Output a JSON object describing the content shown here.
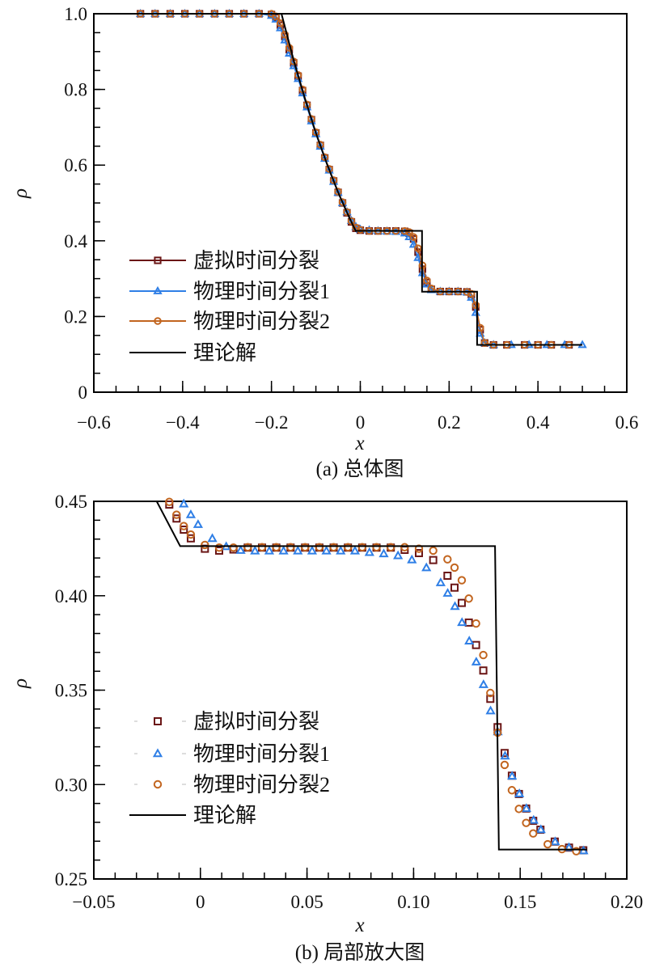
{
  "chart_data": [
    {
      "type": "line",
      "caption": "(a) 总体图",
      "xlabel": "x",
      "ylabel": "ρ",
      "xlim": [
        -0.6,
        0.6
      ],
      "ylim": [
        0,
        1.0
      ],
      "xticks": [
        -0.6,
        -0.4,
        -0.2,
        0,
        0.2,
        0.4,
        0.6
      ],
      "xtick_labels": [
        "−0.6",
        "−0.4",
        "−0.2",
        "0",
        "0.2",
        "0.4",
        "0.6"
      ],
      "yticks": [
        0,
        0.2,
        0.4,
        0.6,
        0.8,
        1.0
      ],
      "ytick_labels": [
        "0",
        "0.2",
        "0.4",
        "0.6",
        "0.8",
        "1.0"
      ],
      "grid": false,
      "legend_position": "bottom-left",
      "series": [
        {
          "name": "虚拟时间分裂",
          "marker": "square",
          "color": "#6b1616",
          "line": true,
          "x": [
            -0.495,
            -0.462,
            -0.428,
            -0.395,
            -0.362,
            -0.328,
            -0.295,
            -0.262,
            -0.228,
            -0.2,
            -0.19,
            -0.18,
            -0.17,
            -0.16,
            -0.15,
            -0.14,
            -0.13,
            -0.12,
            -0.11,
            -0.1,
            -0.09,
            -0.08,
            -0.07,
            -0.06,
            -0.05,
            -0.04,
            -0.03,
            -0.02,
            -0.01,
            0,
            0.02,
            0.04,
            0.06,
            0.08,
            0.1,
            0.11,
            0.12,
            0.13,
            0.14,
            0.15,
            0.16,
            0.18,
            0.2,
            0.22,
            0.24,
            0.25,
            0.26,
            0.27,
            0.28,
            0.3,
            0.33,
            0.37,
            0.4,
            0.43,
            0.47
          ],
          "y": [
            1,
            1,
            1,
            1,
            1,
            1,
            1,
            1,
            1,
            0.998,
            0.99,
            0.97,
            0.94,
            0.905,
            0.87,
            0.835,
            0.797,
            0.758,
            0.72,
            0.685,
            0.652,
            0.619,
            0.588,
            0.558,
            0.528,
            0.5,
            0.474,
            0.45,
            0.433,
            0.428,
            0.426,
            0.426,
            0.426,
            0.426,
            0.425,
            0.42,
            0.405,
            0.37,
            0.325,
            0.29,
            0.272,
            0.266,
            0.266,
            0.266,
            0.265,
            0.258,
            0.225,
            0.165,
            0.13,
            0.125,
            0.125,
            0.125,
            0.125,
            0.125,
            0.125
          ]
        },
        {
          "name": "物理时间分裂1",
          "marker": "triangle",
          "color": "#2f7fe6",
          "line": true,
          "x": [
            -0.495,
            -0.462,
            -0.428,
            -0.395,
            -0.362,
            -0.328,
            -0.295,
            -0.262,
            -0.228,
            -0.2,
            -0.19,
            -0.18,
            -0.17,
            -0.16,
            -0.15,
            -0.14,
            -0.13,
            -0.12,
            -0.11,
            -0.1,
            -0.09,
            -0.08,
            -0.07,
            -0.06,
            -0.05,
            -0.04,
            -0.03,
            -0.02,
            -0.01,
            0,
            0.02,
            0.04,
            0.06,
            0.08,
            0.1,
            0.11,
            0.12,
            0.13,
            0.14,
            0.15,
            0.16,
            0.18,
            0.2,
            0.22,
            0.24,
            0.25,
            0.26,
            0.27,
            0.28,
            0.3,
            0.34,
            0.38,
            0.42,
            0.46,
            0.5
          ],
          "y": [
            1,
            1,
            1,
            1,
            1,
            1,
            1,
            1,
            1,
            0.995,
            0.985,
            0.962,
            0.93,
            0.895,
            0.862,
            0.828,
            0.79,
            0.753,
            0.716,
            0.682,
            0.649,
            0.617,
            0.586,
            0.556,
            0.527,
            0.5,
            0.476,
            0.453,
            0.437,
            0.43,
            0.428,
            0.426,
            0.425,
            0.424,
            0.42,
            0.41,
            0.39,
            0.355,
            0.315,
            0.285,
            0.27,
            0.266,
            0.266,
            0.266,
            0.264,
            0.25,
            0.21,
            0.155,
            0.13,
            0.125,
            0.125,
            0.125,
            0.125,
            0.125,
            0.125
          ]
        },
        {
          "name": "物理时间分裂2",
          "marker": "circle",
          "color": "#c2651f",
          "line": true,
          "x": [
            -0.495,
            -0.462,
            -0.428,
            -0.395,
            -0.362,
            -0.328,
            -0.295,
            -0.262,
            -0.228,
            -0.2,
            -0.19,
            -0.18,
            -0.17,
            -0.16,
            -0.15,
            -0.14,
            -0.13,
            -0.12,
            -0.11,
            -0.1,
            -0.09,
            -0.08,
            -0.07,
            -0.06,
            -0.05,
            -0.04,
            -0.03,
            -0.02,
            -0.01,
            0,
            0.02,
            0.04,
            0.06,
            0.08,
            0.1,
            0.11,
            0.12,
            0.13,
            0.14,
            0.15,
            0.16,
            0.18,
            0.2,
            0.22,
            0.24,
            0.25,
            0.26,
            0.27,
            0.28,
            0.3,
            0.33,
            0.37,
            0.4,
            0.43,
            0.47
          ],
          "y": [
            1,
            1,
            1,
            1,
            1,
            1,
            1,
            1,
            1,
            1,
            0.993,
            0.975,
            0.945,
            0.91,
            0.874,
            0.838,
            0.8,
            0.76,
            0.722,
            0.687,
            0.654,
            0.621,
            0.59,
            0.56,
            0.53,
            0.502,
            0.476,
            0.452,
            0.435,
            0.429,
            0.426,
            0.426,
            0.426,
            0.426,
            0.426,
            0.423,
            0.41,
            0.38,
            0.335,
            0.295,
            0.274,
            0.266,
            0.266,
            0.266,
            0.265,
            0.26,
            0.23,
            0.17,
            0.13,
            0.125,
            0.125,
            0.125,
            0.125,
            0.125,
            0.125
          ]
        },
        {
          "name": "理论解",
          "marker": "none",
          "color": "#000000",
          "line": true,
          "x": [
            -0.6,
            -0.1775,
            -0.15,
            -0.125,
            -0.1,
            -0.075,
            -0.05,
            -0.025,
            -0.0105,
            0.139,
            0.139,
            0.263,
            0.263,
            0.5
          ],
          "y": [
            1,
            1,
            0.877,
            0.777,
            0.685,
            0.603,
            0.528,
            0.462,
            0.4263,
            0.4263,
            0.2656,
            0.2656,
            0.125,
            0.125
          ]
        }
      ]
    },
    {
      "type": "scatter",
      "caption": "(b) 局部放大图",
      "xlabel": "x",
      "ylabel": "ρ",
      "xlim": [
        -0.05,
        0.2
      ],
      "ylim": [
        0.25,
        0.45
      ],
      "xticks": [
        -0.05,
        0,
        0.05,
        0.1,
        0.15,
        0.2
      ],
      "xtick_labels": [
        "−0.05",
        "0",
        "0.05",
        "0.10",
        "0.15",
        "0.20"
      ],
      "yticks": [
        0.25,
        0.3,
        0.35,
        0.4,
        0.45
      ],
      "ytick_labels": [
        "0.25",
        "0.30",
        "0.35",
        "0.40",
        "0.45"
      ],
      "grid": false,
      "legend_position": "bottom-left",
      "series": [
        {
          "name": "虚拟时间分裂",
          "marker": "square",
          "color": "#6b1616",
          "line": false,
          "x": [
            -0.0146,
            -0.0112,
            -0.0078,
            -0.0045,
            0.0021,
            0.0088,
            0.0155,
            0.0222,
            0.0289,
            0.0356,
            0.0423,
            0.0491,
            0.0558,
            0.0625,
            0.0692,
            0.0759,
            0.0826,
            0.0893,
            0.0958,
            0.1025,
            0.1092,
            0.1159,
            0.1192,
            0.1226,
            0.1259,
            0.1293,
            0.1327,
            0.136,
            0.1394,
            0.1427,
            0.1461,
            0.1494,
            0.1528,
            0.1561,
            0.1595,
            0.1662,
            0.1729,
            0.1796
          ],
          "y": [
            0.4483,
            0.4409,
            0.435,
            0.4304,
            0.4249,
            0.4239,
            0.4245,
            0.4255,
            0.4255,
            0.4255,
            0.4255,
            0.4255,
            0.4255,
            0.4255,
            0.4255,
            0.4255,
            0.4255,
            0.4255,
            0.4243,
            0.4226,
            0.4189,
            0.4106,
            0.4043,
            0.3962,
            0.3858,
            0.3739,
            0.3604,
            0.3454,
            0.3304,
            0.3167,
            0.3047,
            0.295,
            0.2873,
            0.2808,
            0.2761,
            0.2698,
            0.2666,
            0.2652
          ]
        },
        {
          "name": "物理时间分裂1",
          "marker": "triangle",
          "color": "#2f7fe6",
          "line": false,
          "x": [
            -0.0078,
            -0.0045,
            -0.0011,
            0.0056,
            0.0121,
            0.0189,
            0.0256,
            0.0323,
            0.039,
            0.0457,
            0.0524,
            0.0591,
            0.0658,
            0.0725,
            0.0793,
            0.086,
            0.0927,
            0.0992,
            0.106,
            0.1127,
            0.116,
            0.1194,
            0.1227,
            0.1261,
            0.1294,
            0.1328,
            0.1361,
            0.1395,
            0.1429,
            0.1462,
            0.1496,
            0.1529,
            0.1563,
            0.1597,
            0.1664,
            0.1729,
            0.1797
          ],
          "y": [
            0.4486,
            0.4429,
            0.4377,
            0.4303,
            0.426,
            0.424,
            0.4237,
            0.4237,
            0.4237,
            0.4237,
            0.4237,
            0.4237,
            0.4237,
            0.4237,
            0.4229,
            0.4222,
            0.4212,
            0.419,
            0.4148,
            0.4069,
            0.4013,
            0.3943,
            0.3858,
            0.376,
            0.3649,
            0.3529,
            0.339,
            0.3279,
            0.3151,
            0.3044,
            0.2951,
            0.2873,
            0.2811,
            0.2761,
            0.2697,
            0.2666,
            0.2649
          ]
        },
        {
          "name": "物理时间分裂2",
          "marker": "circle",
          "color": "#c2651f",
          "line": false,
          "x": [
            -0.0146,
            -0.0112,
            -0.0078,
            -0.0045,
            0.0021,
            0.0088,
            0.0155,
            0.0222,
            0.0289,
            0.0356,
            0.0423,
            0.0491,
            0.0558,
            0.0625,
            0.0692,
            0.0759,
            0.0826,
            0.0893,
            0.0958,
            0.1025,
            0.1092,
            0.1159,
            0.1192,
            0.1226,
            0.1259,
            0.1293,
            0.1327,
            0.136,
            0.1394,
            0.1427,
            0.1461,
            0.1494,
            0.1528,
            0.1561,
            0.1629,
            0.1696,
            0.1763
          ],
          "y": [
            0.4497,
            0.4429,
            0.4369,
            0.4324,
            0.4269,
            0.4255,
            0.4255,
            0.4257,
            0.4257,
            0.4257,
            0.4257,
            0.4257,
            0.4257,
            0.4257,
            0.4257,
            0.4257,
            0.4257,
            0.4257,
            0.4257,
            0.4249,
            0.4239,
            0.4193,
            0.4149,
            0.4082,
            0.3985,
            0.3853,
            0.3686,
            0.3485,
            0.3275,
            0.3104,
            0.297,
            0.2871,
            0.2797,
            0.2741,
            0.2684,
            0.2658,
            0.2647
          ]
        },
        {
          "name": "理论解",
          "marker": "none",
          "color": "#000000",
          "line": true,
          "x": [
            -0.0205,
            -0.0095,
            0.1382,
            0.14,
            0.1814
          ],
          "y": [
            0.45,
            0.4263,
            0.4263,
            0.2656,
            0.2656
          ]
        }
      ]
    }
  ]
}
